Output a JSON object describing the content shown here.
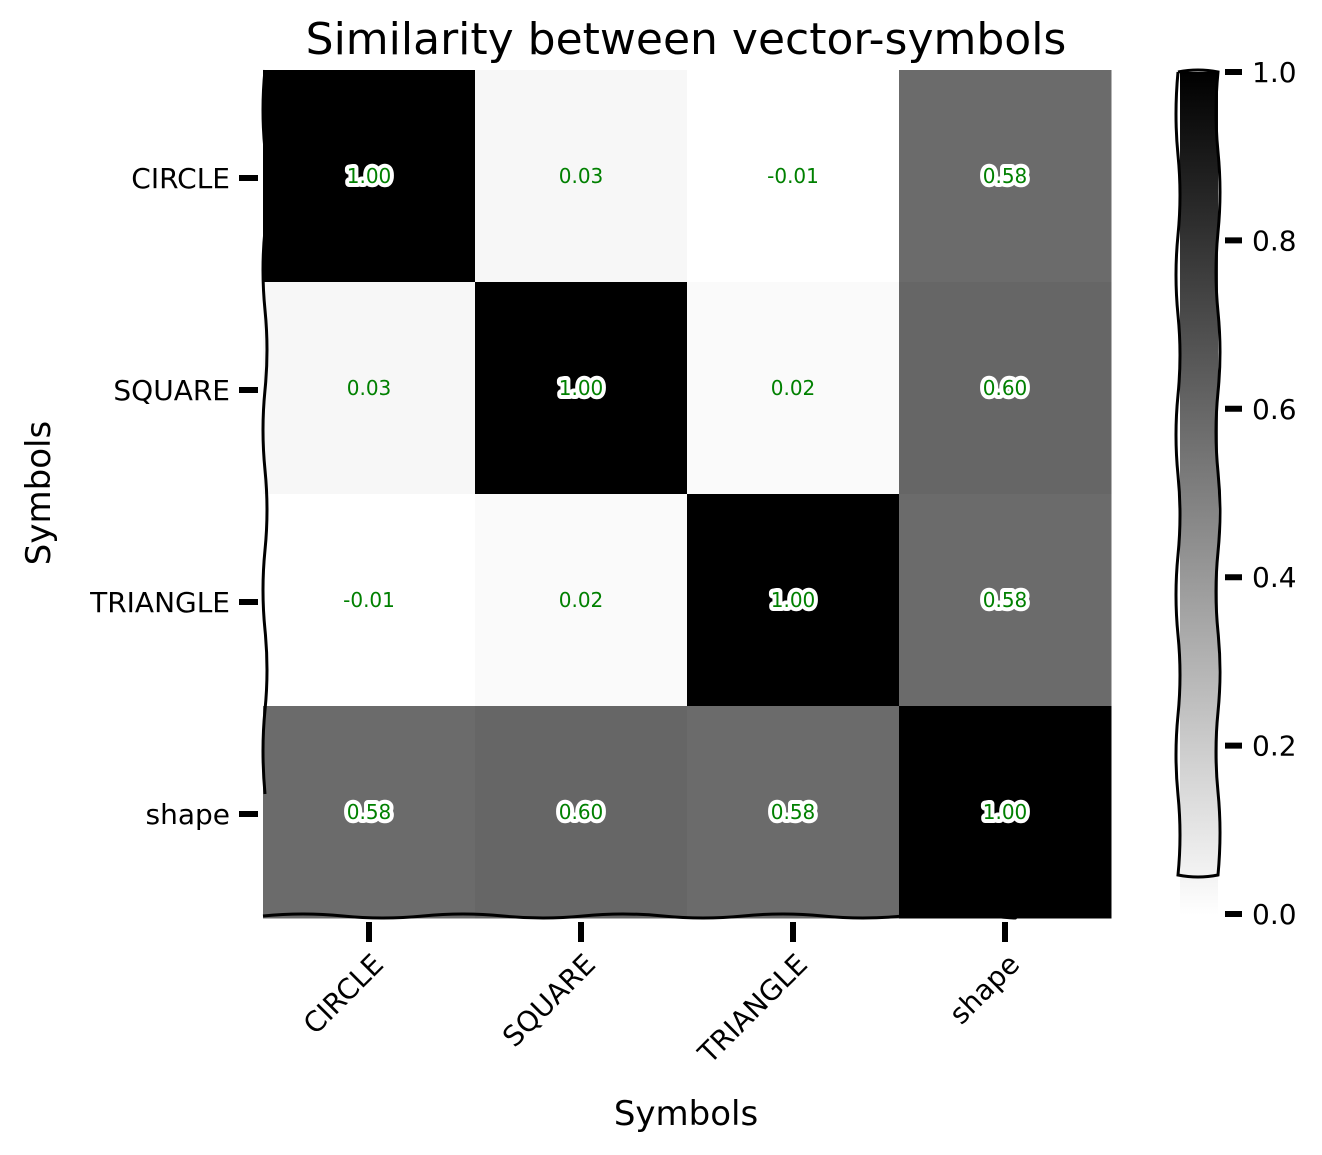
{
  "chart_data": {
    "type": "heatmap",
    "title": "Similarity between vector-symbols",
    "xlabel": "Symbols",
    "ylabel": "Symbols",
    "x_categories": [
      "CIRCLE",
      "SQUARE",
      "TRIANGLE",
      "shape"
    ],
    "y_categories": [
      "CIRCLE",
      "SQUARE",
      "TRIANGLE",
      "shape"
    ],
    "values": [
      [
        1.0,
        0.03,
        -0.01,
        0.58
      ],
      [
        0.03,
        1.0,
        0.02,
        0.6
      ],
      [
        -0.01,
        0.02,
        1.0,
        0.58
      ],
      [
        0.58,
        0.6,
        0.58,
        1.0
      ]
    ],
    "value_labels": [
      [
        "1.00",
        "0.03",
        "-0.01",
        "0.58"
      ],
      [
        "0.03",
        "1.00",
        "0.02",
        "0.60"
      ],
      [
        "-0.01",
        "0.02",
        "1.00",
        "0.58"
      ],
      [
        "0.58",
        "0.60",
        "0.58",
        "1.00"
      ]
    ],
    "colormap": "grays (white = 0.0, black = 1.0)",
    "colorbar": {
      "range": [
        0.0,
        1.0
      ],
      "ticks": [
        "0.0",
        "0.2",
        "0.4",
        "0.6",
        "0.8",
        "1.0"
      ],
      "placement": "right"
    },
    "annotation_color": "#008000",
    "annotation_halo_color": "#ffffff",
    "grid": false
  }
}
